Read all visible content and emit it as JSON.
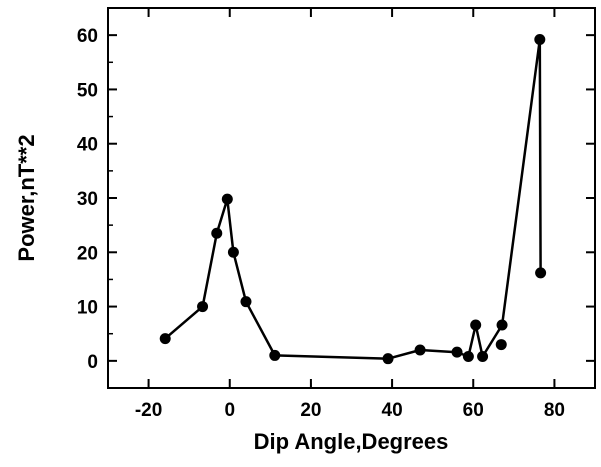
{
  "chart_data": {
    "type": "scatter",
    "title": "",
    "xlabel": "Dip Angle,Degrees",
    "ylabel": "Power,nT**2",
    "xlim": [
      -30,
      90
    ],
    "ylim": [
      -5,
      65
    ],
    "xticks": [
      -20,
      0,
      20,
      40,
      60,
      80
    ],
    "xtick_labels": [
      "-20",
      "0",
      "20",
      "40",
      "60",
      "80"
    ],
    "yticks": [
      0,
      10,
      20,
      30,
      40,
      50,
      60
    ],
    "ytick_labels": [
      "0",
      "10",
      "20",
      "30",
      "40",
      "50",
      "60"
    ],
    "grid": false,
    "legend": "none",
    "series": [
      {
        "points": [
          {
            "x": -15.9,
            "y": 4.1
          },
          {
            "x": -6.7,
            "y": 10.0
          },
          {
            "x": -3.2,
            "y": 23.5
          },
          {
            "x": -0.6,
            "y": 29.8
          },
          {
            "x": 0.9,
            "y": 20.0
          },
          {
            "x": 4.0,
            "y": 10.9
          },
          {
            "x": 11.1,
            "y": 1.0
          },
          {
            "x": 39.0,
            "y": 0.4
          },
          {
            "x": 46.9,
            "y": 2.0
          },
          {
            "x": 56.0,
            "y": 1.6
          },
          {
            "x": 58.8,
            "y": 0.8
          },
          {
            "x": 60.6,
            "y": 6.6
          },
          {
            "x": 62.3,
            "y": 0.8
          },
          {
            "x": 67.1,
            "y": 6.6
          },
          {
            "x": 76.4,
            "y": 59.2
          },
          {
            "x": 76.6,
            "y": 16.2
          }
        ],
        "extra_points": [
          {
            "x": 66.9,
            "y": 3.0
          }
        ]
      }
    ],
    "colors": {
      "line": "#000000",
      "marker": "#000000",
      "axis": "#000000"
    }
  }
}
